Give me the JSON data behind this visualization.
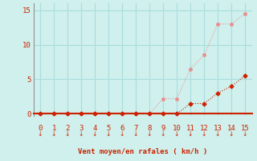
{
  "x": [
    0,
    1,
    2,
    3,
    4,
    5,
    6,
    7,
    8,
    9,
    10,
    11,
    12,
    13,
    14,
    15
  ],
  "rafales": [
    0,
    0,
    0,
    0,
    0,
    0,
    0,
    0,
    0,
    2.2,
    2.2,
    6.5,
    8.5,
    13.0,
    13.0,
    14.5
  ],
  "moyen": [
    0,
    0,
    0,
    0,
    0,
    0,
    0,
    0,
    0,
    0,
    0,
    1.5,
    1.5,
    3.0,
    4.0,
    5.5
  ],
  "rafales_color": "#e89090",
  "moyen_color": "#cc2200",
  "bg_color": "#cff0ec",
  "grid_color": "#aadddd",
  "spine_color": "#888888",
  "bottom_line_color": "#cc2200",
  "axis_color": "#cc2200",
  "xlabel": "Vent moyen/en rafales ( km/h )",
  "xlabel_color": "#cc2200",
  "tick_label_color": "#cc2200",
  "arrow_color": "#cc2200",
  "ylim": [
    -0.3,
    16
  ],
  "xlim": [
    -0.5,
    15.5
  ],
  "yticks": [
    0,
    5,
    10,
    15
  ],
  "xticks": [
    0,
    1,
    2,
    3,
    4,
    5,
    6,
    7,
    8,
    9,
    10,
    11,
    12,
    13,
    14,
    15
  ]
}
